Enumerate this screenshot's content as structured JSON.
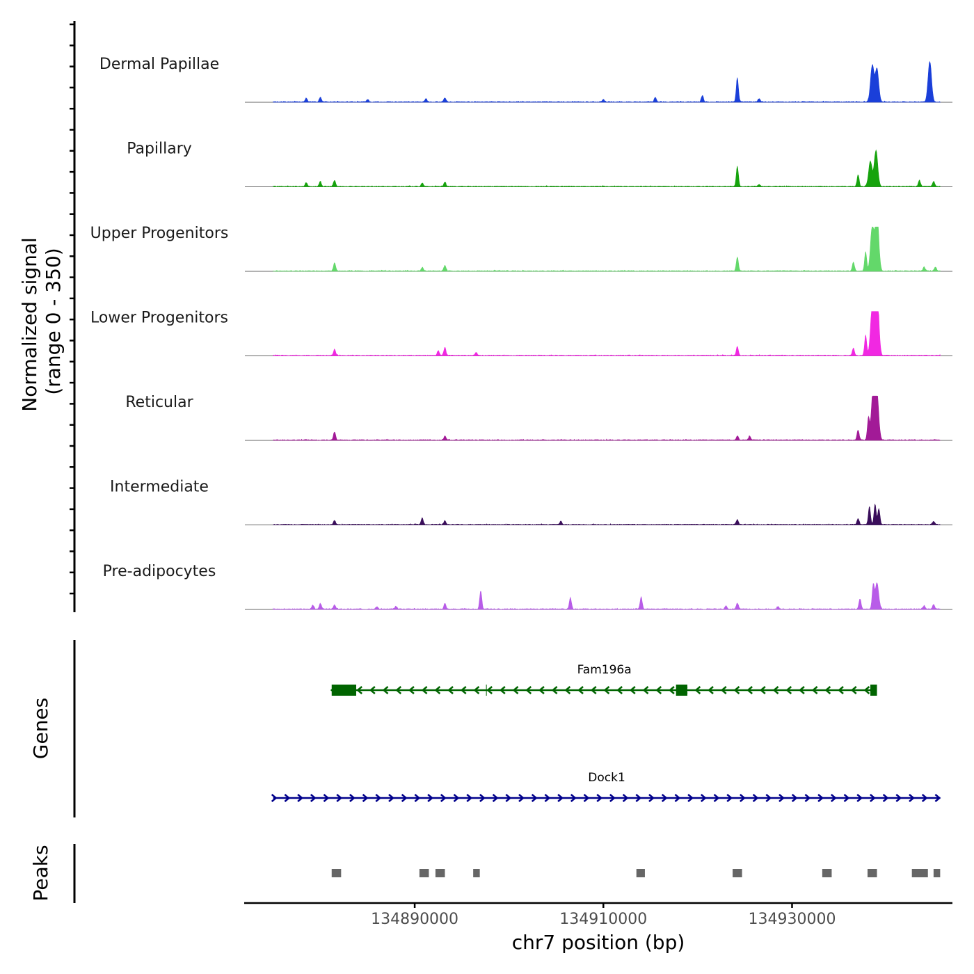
{
  "chart_data": {
    "type": "area",
    "title": "",
    "ylabel": "Normalized signal\n(range 0 - 350)",
    "y_range_label": "range 0 - 350",
    "ylim": [
      0,
      350
    ],
    "xlabel": "chr7 position (bp)",
    "chromosome": "chr7",
    "xlim": [
      134872000,
      134947000
    ],
    "x_ticks": [
      134890000,
      134910000,
      134930000
    ],
    "x_tick_labels": [
      "134890000",
      "134910000",
      "134930000"
    ],
    "tracks": [
      {
        "name": "Dermal Papillae",
        "color": "#1A3FD9",
        "peaks": [
          [
            134878500,
            10
          ],
          [
            134880000,
            12
          ],
          [
            134885000,
            6
          ],
          [
            134891200,
            8
          ],
          [
            134893200,
            10
          ],
          [
            134910000,
            6
          ],
          [
            134915500,
            12
          ],
          [
            134920500,
            16
          ],
          [
            134924200,
            60
          ],
          [
            134926500,
            8
          ],
          [
            134938500,
            90
          ],
          [
            134939000,
            82
          ],
          [
            134944600,
            100
          ]
        ]
      },
      {
        "name": "Papillary",
        "color": "#16A30D",
        "peaks": [
          [
            134878500,
            10
          ],
          [
            134880000,
            12
          ],
          [
            134881500,
            15
          ],
          [
            134890800,
            8
          ],
          [
            134893200,
            10
          ],
          [
            134924200,
            50
          ],
          [
            134926500,
            5
          ],
          [
            134937000,
            28
          ],
          [
            134938300,
            62
          ],
          [
            134938900,
            90
          ],
          [
            134943500,
            15
          ],
          [
            134945000,
            12
          ]
        ]
      },
      {
        "name": "Upper Progenitors",
        "color": "#63D86A",
        "peaks": [
          [
            134881500,
            20
          ],
          [
            134890800,
            8
          ],
          [
            134893200,
            14
          ],
          [
            134924200,
            35
          ],
          [
            134936500,
            22
          ],
          [
            134937800,
            48
          ],
          [
            134938500,
            110
          ],
          [
            134939000,
            150
          ],
          [
            134944000,
            10
          ],
          [
            134945200,
            10
          ]
        ]
      },
      {
        "name": "Lower Progenitors",
        "color": "#F128E2",
        "peaks": [
          [
            134881500,
            15
          ],
          [
            134892500,
            12
          ],
          [
            134893200,
            20
          ],
          [
            134896500,
            8
          ],
          [
            134924200,
            22
          ],
          [
            134936500,
            18
          ],
          [
            134937800,
            50
          ],
          [
            134938500,
            120
          ],
          [
            134939000,
            180
          ]
        ]
      },
      {
        "name": "Reticular",
        "color": "#A21A97",
        "peaks": [
          [
            134881500,
            20
          ],
          [
            134893200,
            10
          ],
          [
            134924200,
            10
          ],
          [
            134925500,
            10
          ],
          [
            134937000,
            25
          ],
          [
            134938100,
            55
          ],
          [
            134938600,
            130
          ],
          [
            134939000,
            115
          ]
        ]
      },
      {
        "name": "Intermediate",
        "color": "#3A0E5B",
        "peaks": [
          [
            134881500,
            10
          ],
          [
            134890800,
            16
          ],
          [
            134893200,
            10
          ],
          [
            134905500,
            8
          ],
          [
            134924200,
            12
          ],
          [
            134937000,
            15
          ],
          [
            134938200,
            45
          ],
          [
            134938800,
            50
          ],
          [
            134939200,
            40
          ],
          [
            134945000,
            8
          ]
        ]
      },
      {
        "name": "Pre-adipocytes",
        "color": "#B85CE8",
        "peaks": [
          [
            134879200,
            10
          ],
          [
            134880000,
            14
          ],
          [
            134881500,
            10
          ],
          [
            134886000,
            6
          ],
          [
            134888000,
            7
          ],
          [
            134893200,
            14
          ],
          [
            134897000,
            45
          ],
          [
            134906500,
            28
          ],
          [
            134914000,
            30
          ],
          [
            134923000,
            8
          ],
          [
            134924200,
            15
          ],
          [
            134928500,
            6
          ],
          [
            134937200,
            25
          ],
          [
            134938600,
            58
          ],
          [
            134939000,
            65
          ],
          [
            134944000,
            8
          ],
          [
            134945000,
            12
          ]
        ]
      }
    ],
    "genes": {
      "label": "Genes",
      "items": [
        {
          "name": "Fam196a",
          "strand": "-",
          "color": "#006400",
          "start": 134881200,
          "end": 134939000,
          "exons": [
            [
              134881200,
              134883800
            ],
            [
              134917700,
              134918900
            ],
            [
              134938300,
              134939000
            ]
          ],
          "mark": 134897600
        },
        {
          "name": "Dock1",
          "strand": "+",
          "color": "#00008B",
          "start": 134875000,
          "end": 134945700,
          "exons": []
        }
      ]
    },
    "peaks_track": {
      "label": "Peaks",
      "color": "#666666",
      "regions": [
        [
          134881200,
          134882200
        ],
        [
          134890500,
          134891500
        ],
        [
          134892200,
          134893200
        ],
        [
          134896200,
          134896900
        ],
        [
          134913500,
          134914400
        ],
        [
          134923700,
          134924700
        ],
        [
          134933200,
          134934200
        ],
        [
          134938000,
          134939000
        ],
        [
          134942700,
          134944400
        ],
        [
          134945000,
          134945700
        ]
      ]
    }
  }
}
